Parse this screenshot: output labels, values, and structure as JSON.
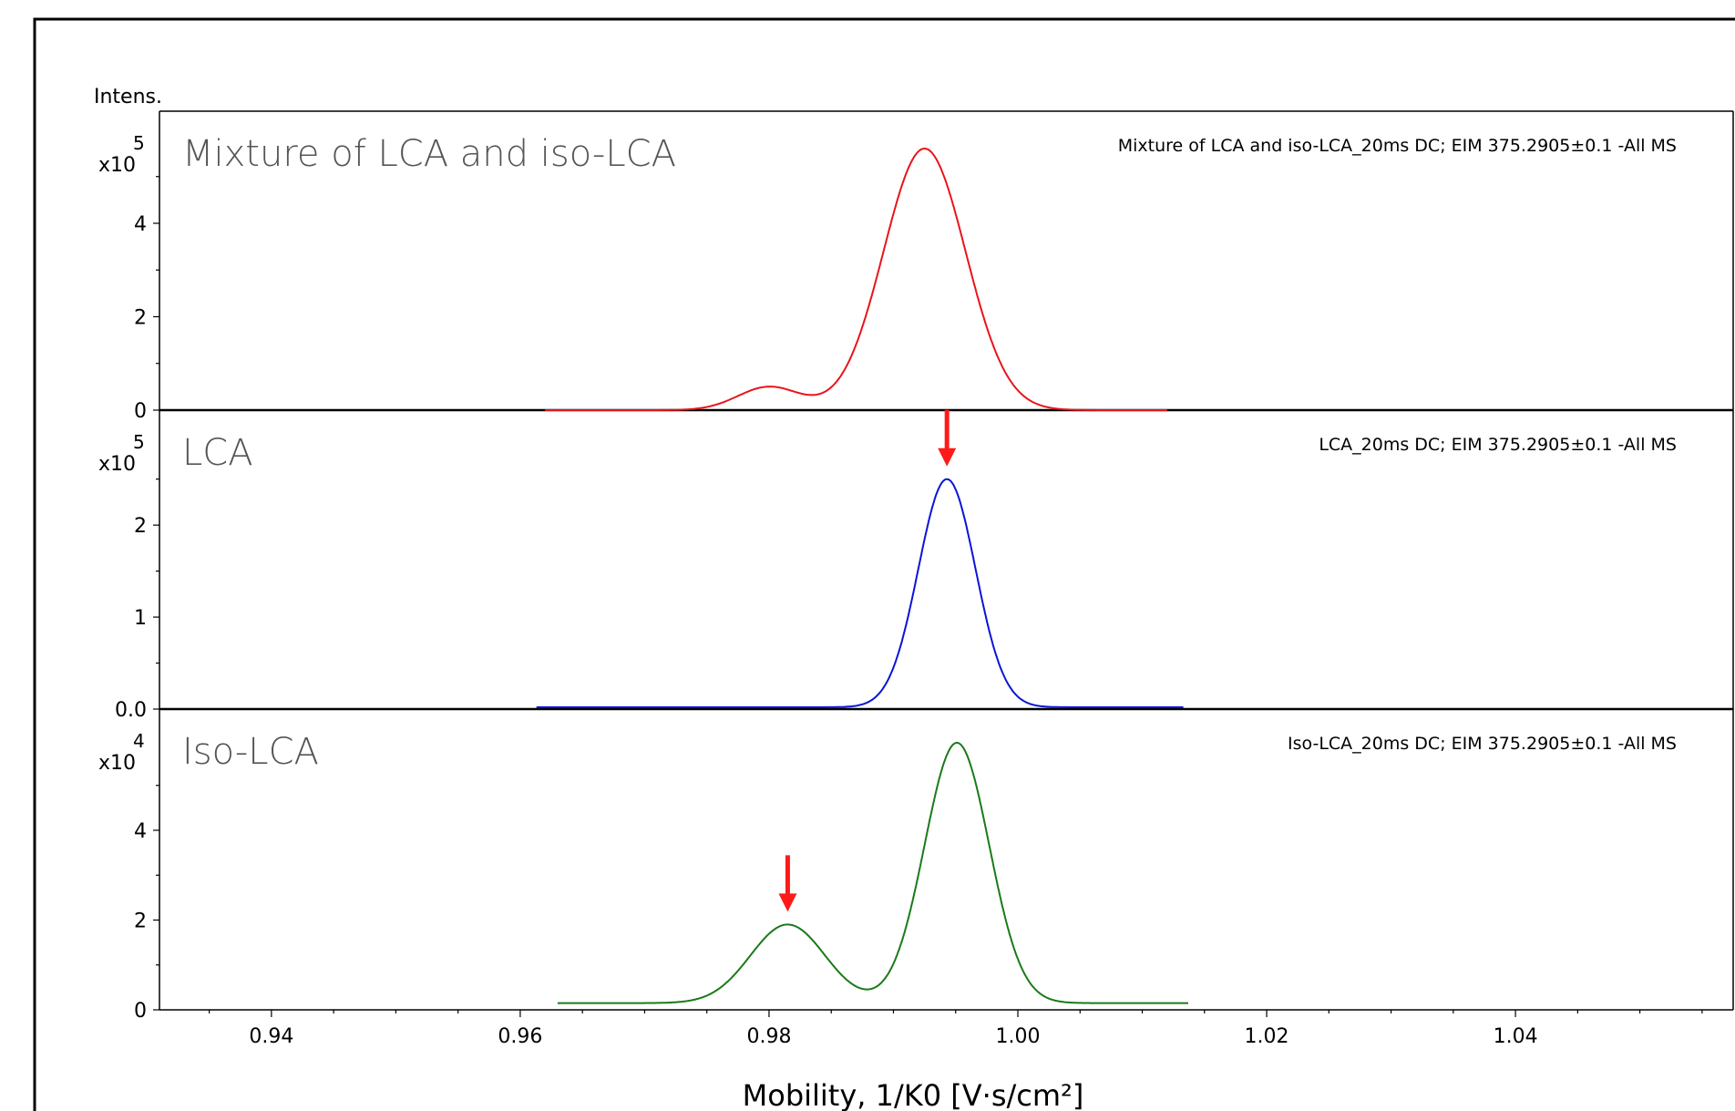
{
  "chart_data": {
    "type": "line",
    "y_axis_title": "Intens.",
    "xlabel": "Mobility, 1/K0 [V·s/cm²]",
    "xlim": [
      0.931,
      1.0575
    ],
    "x_ticks": [
      0.94,
      0.96,
      0.98,
      1.0,
      1.02,
      1.04
    ],
    "x_tick_labels": [
      "0.94",
      "0.96",
      "0.98",
      "1.00",
      "1.02",
      "1.04"
    ],
    "panels": [
      {
        "title": "Mixture of LCA and iso-LCA",
        "description": "Mixture of LCA and iso-LCA_20ms DC; EIM 375.2905±0.1 -All MS",
        "scale_base": "x10",
        "scale_exp": "5",
        "color": "#e8141b",
        "ylim": [
          0,
          6.4
        ],
        "y_ticks": [
          0,
          2,
          4
        ],
        "y_tick_labels": [
          "0",
          "2",
          "4"
        ],
        "x_range": [
          0.962,
          1.012
        ],
        "baseline": 0.0,
        "peaks": [
          {
            "center": 0.98,
            "height": 0.5,
            "sigma": 0.0025
          },
          {
            "center": 0.9925,
            "height": 5.6,
            "sigma": 0.0033
          }
        ],
        "arrows": []
      },
      {
        "title": "LCA",
        "description": "LCA_20ms DC; EIM 375.2905±0.1 -All MS",
        "scale_base": "x10",
        "scale_exp": "5",
        "color": "#0a14d8",
        "ylim": [
          0,
          3.25
        ],
        "y_ticks": [
          0,
          1,
          2
        ],
        "y_tick_labels": [
          "0.0",
          "1",
          "2"
        ],
        "x_range": [
          0.9613,
          1.0133
        ],
        "baseline": 0.02,
        "peaks": [
          {
            "center": 0.9943,
            "height": 2.48,
            "sigma": 0.0023
          }
        ],
        "arrows": [
          {
            "x": 0.9943
          }
        ]
      },
      {
        "title": "Iso-LCA",
        "description": "Iso-LCA_20ms DC; EIM 375.2905±0.1 -All MS",
        "scale_base": "x10",
        "scale_exp": "4",
        "color": "#1a7a1a",
        "ylim": [
          0,
          6.7
        ],
        "y_ticks": [
          0,
          2,
          4
        ],
        "y_tick_labels": [
          "0",
          "2",
          "4"
        ],
        "x_range": [
          0.963,
          1.0137
        ],
        "baseline": 0.15,
        "peaks": [
          {
            "center": 0.9815,
            "height": 1.75,
            "sigma": 0.003
          },
          {
            "center": 0.9951,
            "height": 5.8,
            "sigma": 0.0026
          }
        ],
        "arrows": [
          {
            "x": 0.9815
          }
        ]
      }
    ]
  }
}
